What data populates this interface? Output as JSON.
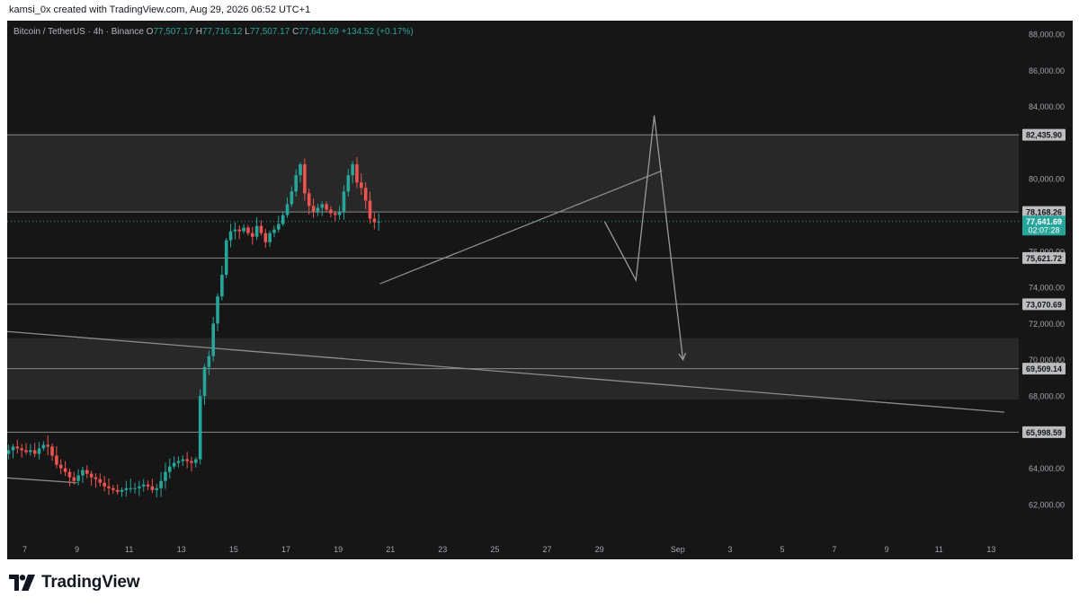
{
  "header": {
    "attribution": "kamsi_0x created with TradingView.com, Aug 29, 2026 06:52 UTC+1"
  },
  "legend": {
    "symbol": "Bitcoin / TetherUS · 4h · Binance",
    "o_label": "O",
    "o_value": "77,507.17",
    "h_label": "H",
    "h_value": "77,716.12",
    "l_label": "L",
    "l_value": "77,507.17",
    "c_label": "C",
    "c_value": "77,641.69",
    "change": "+134.52 (+0.17%)"
  },
  "branding": {
    "logo_text": "TradingView"
  },
  "colors": {
    "up": "#26a69a",
    "down": "#ef5350",
    "background": "#161616",
    "price_tag": "#26a69a"
  },
  "chart_data": {
    "type": "candlestick",
    "symbol": "BTCUSDT",
    "interval": "4h",
    "ylim": [
      60500,
      88800
    ],
    "y_ticks": [
      "88,000.00",
      "86,000.00",
      "84,000.00",
      "80,000.00",
      "76,000.00",
      "74,000.00",
      "72,000.00",
      "70,000.00",
      "68,000.00",
      "64,000.00",
      "62,000.00"
    ],
    "x_ticks": [
      "7",
      "9",
      "11",
      "13",
      "15",
      "17",
      "19",
      "21",
      "23",
      "25",
      "27",
      "29",
      "Sep",
      "3",
      "5",
      "7",
      "9",
      "11",
      "13"
    ],
    "current_price": {
      "value": "77,641.69",
      "countdown": "02:07:28"
    },
    "levels": [
      {
        "value": 82435.9,
        "label": "82,435.90"
      },
      {
        "value": 78168.26,
        "label": "78,168.26"
      },
      {
        "value": 75621.72,
        "label": "75,621.72"
      },
      {
        "value": 73070.69,
        "label": "73,070.69"
      },
      {
        "value": 69509.14,
        "label": "69,509.14"
      },
      {
        "value": 65998.59,
        "label": "65,998.59"
      }
    ],
    "zones": [
      {
        "from": 78168.26,
        "to": 82435.9
      },
      {
        "from": 67800,
        "to": 71200
      }
    ],
    "close_series_start": "Aug 6",
    "close_series": [
      64600,
      64800,
      65000,
      65200,
      65100,
      65000,
      64900,
      65000,
      64800,
      65100,
      65300,
      65200,
      64700,
      64200,
      64000,
      63800,
      63500,
      63300,
      63600,
      63900,
      63700,
      63500,
      63400,
      63200,
      63000,
      62900,
      62800,
      62700,
      62800,
      62900,
      62900,
      62900,
      63000,
      63100,
      63000,
      62800,
      62900,
      63300,
      63800,
      64100,
      64300,
      64400,
      64500,
      64400,
      64300,
      64500,
      68000,
      69600,
      70200,
      72000,
      73500,
      74700,
      76600,
      77100,
      77200,
      77100,
      77300,
      77000,
      76800,
      77400,
      77000,
      76500,
      77000,
      77200,
      77500,
      78000,
      78600,
      79300,
      80200,
      80800,
      79200,
      78500,
      78200,
      78400,
      78600,
      78300,
      78100,
      78000,
      78200,
      79300,
      80200,
      80800,
      79800,
      79500,
      78800,
      77800,
      77600,
      77641.69
    ],
    "trendlines": [
      {
        "x0": "Aug 6",
        "y0": 63500,
        "x1": "Aug 9",
        "y1": 63200
      },
      {
        "x0": "Aug 6",
        "y0": 71600,
        "x1": "Sep 13.5",
        "y1": 67100
      },
      {
        "x0": "Aug 20.6",
        "y0": 74200,
        "x1": "Aug 31.4",
        "y1": 80450
      }
    ],
    "projection": [
      {
        "x": "Aug 29.2",
        "y": 77641.69
      },
      {
        "x": "Aug 30.4",
        "y": 74400
      },
      {
        "x": "Aug 31.1",
        "y": 83500
      },
      {
        "x": "Sep 1.2",
        "y": 70000
      }
    ]
  }
}
